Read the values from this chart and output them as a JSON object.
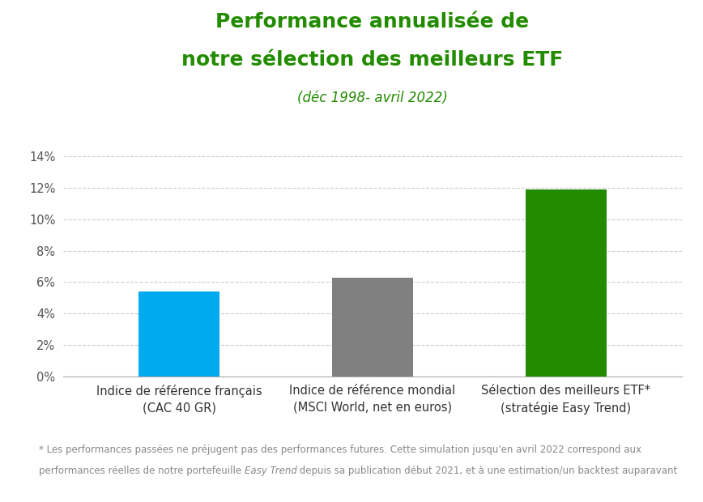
{
  "title_line1": "Performance annualisée de",
  "title_line2": "notre sélection des meilleurs ETF",
  "subtitle": "(déc 1998- avril 2022)",
  "categories": [
    "Indice de référence français\n(CAC 40 GR)",
    "Indice de référence mondial\n(MSCI World, net en euros)",
    "Sélection des meilleurs ETF*\n(stratégie Easy Trend)"
  ],
  "values": [
    0.054,
    0.063,
    0.119
  ],
  "bar_colors": [
    "#00AAEE",
    "#808080",
    "#228B00"
  ],
  "ylim": [
    0,
    0.15
  ],
  "yticks": [
    0.0,
    0.02,
    0.04,
    0.06,
    0.08,
    0.1,
    0.12,
    0.14
  ],
  "title_color": "#228B00",
  "subtitle_color": "#228B00",
  "title_fontsize": 18,
  "subtitle_fontsize": 12,
  "tick_label_fontsize": 10.5,
  "footnote_line1": "* Les performances passées ne préjugent pas des performances futures. Cette simulation jusqu'en avril 2022 correspond aux",
  "footnote_line2_pre": "performances réelles de notre portefeuille ",
  "footnote_line2_italic": "Easy Trend",
  "footnote_line2_post": " depuis sa publication début 2021, et à une estimation/un backtest auparavant",
  "footnote_fontsize": 8.5,
  "footnote_color": "#888888",
  "background_color": "#ffffff",
  "grid_color": "#cccccc"
}
